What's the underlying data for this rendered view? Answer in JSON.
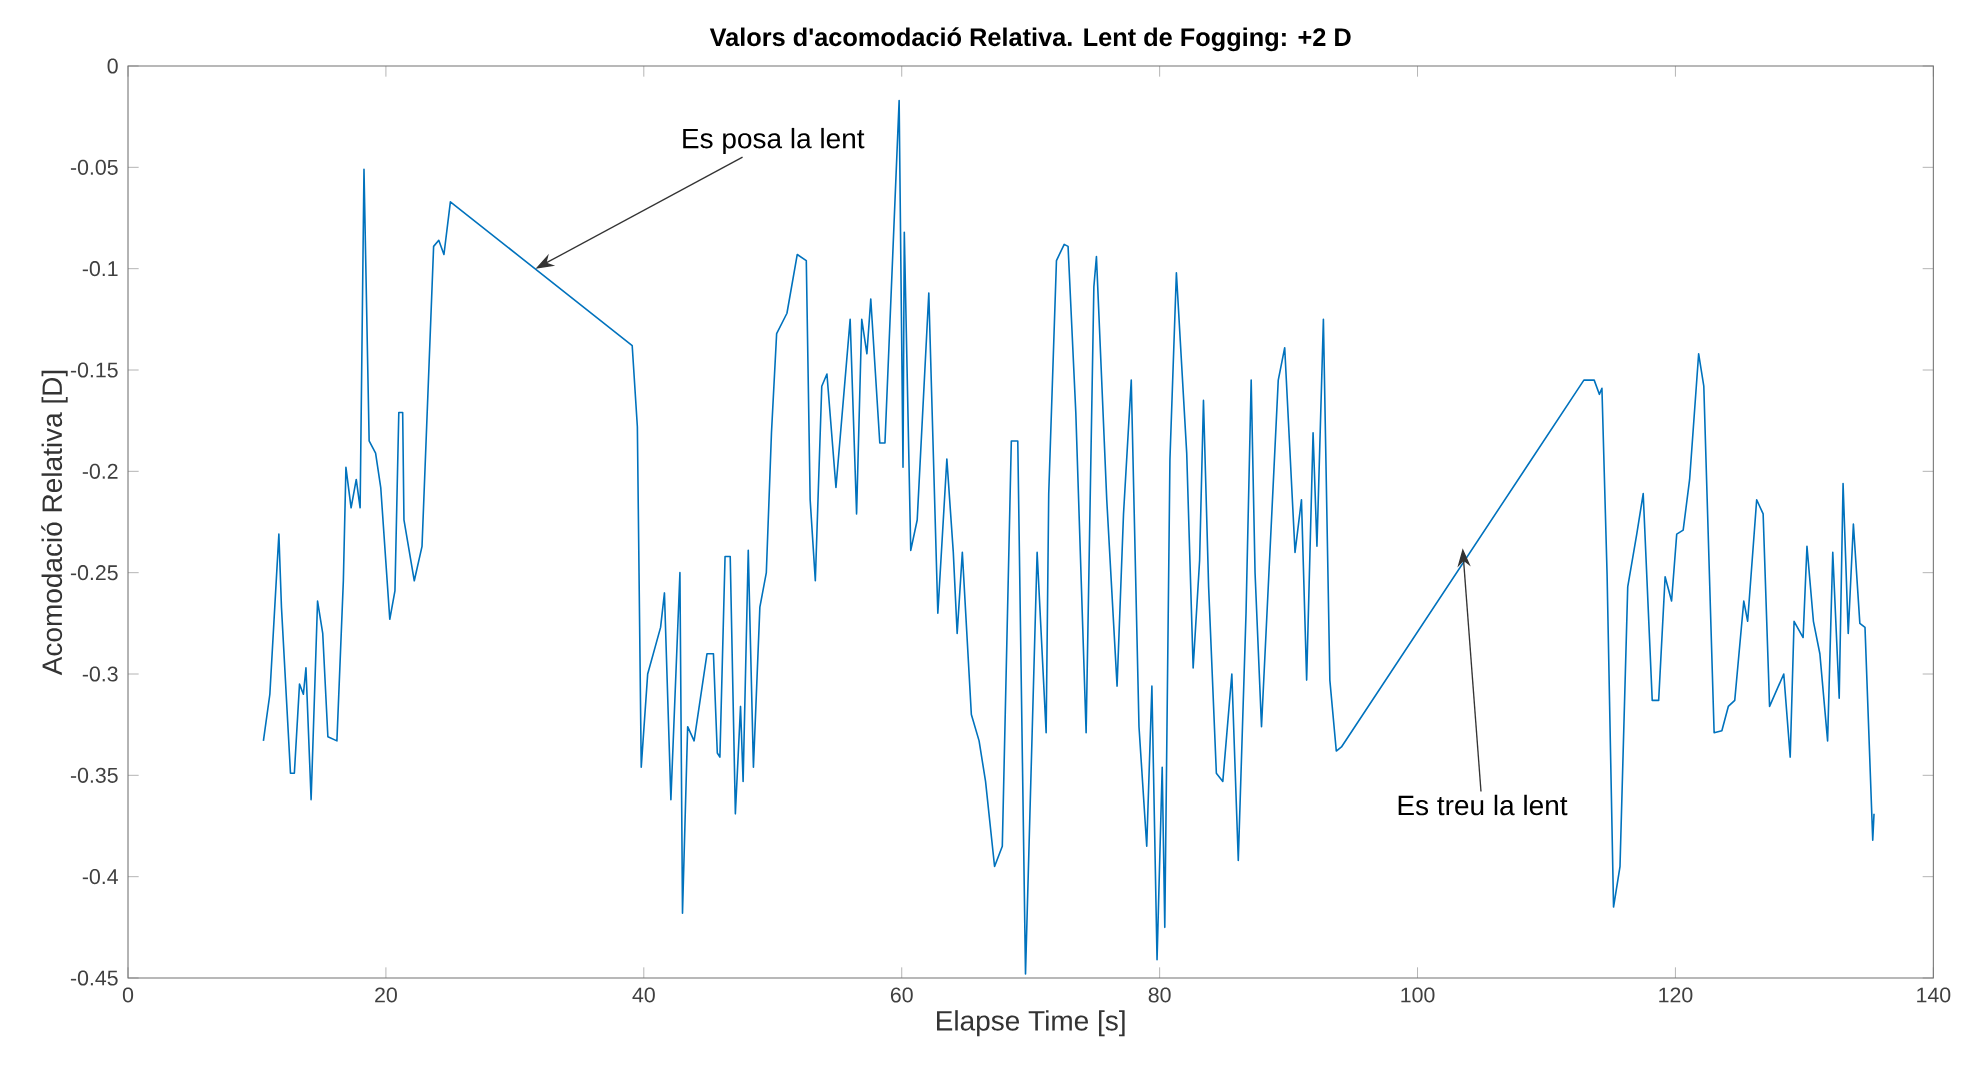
{
  "chart_data": {
    "type": "line",
    "title": "Valors d'acomodació Relativa. Lent de Fogging: +2 D",
    "xlabel": "Elapse Time [s]",
    "ylabel": "Acomodació Relativa [D]",
    "xlim": [
      0,
      140
    ],
    "ylim": [
      -0.45,
      0
    ],
    "xticks": [
      0,
      20,
      40,
      60,
      80,
      100,
      120,
      140
    ],
    "yticks": [
      -0.45,
      -0.4,
      -0.35,
      -0.3,
      -0.25,
      -0.2,
      -0.15,
      -0.1,
      -0.05,
      0
    ],
    "grid": false,
    "line_style": "solid",
    "marker": "none",
    "annotations": [
      {
        "text": "Es posa la lent",
        "x": 31.6,
        "y": -0.1
      },
      {
        "text": "Es treu la lent",
        "x": 103.5,
        "y": -0.238
      }
    ],
    "series": [
      {
        "color": "#0072bd",
        "x": [
          10.5,
          11.0,
          11.7,
          11.9,
          12.6,
          12.9,
          13.3,
          13.6,
          13.8,
          14.2,
          14.7,
          15.1,
          15.5,
          16.2,
          16.7,
          16.9,
          17.3,
          17.7,
          18.0,
          18.3,
          18.7,
          19.2,
          19.6,
          20.3,
          20.7,
          21.0,
          21.3,
          21.4,
          22.2,
          22.8,
          23.7,
          24.1,
          24.5,
          25.0,
          39.1,
          39.5,
          39.8,
          40.3,
          41.3,
          41.6,
          42.1,
          42.8,
          43.0,
          43.4,
          43.9,
          44.9,
          45.4,
          45.7,
          45.9,
          46.3,
          46.7,
          47.1,
          47.5,
          47.7,
          48.1,
          48.5,
          49.0,
          49.5,
          49.9,
          50.3,
          51.1,
          51.9,
          52.6,
          52.9,
          53.3,
          53.8,
          54.2,
          54.9,
          56.0,
          56.5,
          56.9,
          57.3,
          57.6,
          58.3,
          58.7,
          59.8,
          60.1,
          60.2,
          60.7,
          61.2,
          62.1,
          62.8,
          63.5,
          64.0,
          64.3,
          64.7,
          65.4,
          66.0,
          66.5,
          67.2,
          67.8,
          68.5,
          69.0,
          69.6,
          70.5,
          71.2,
          71.4,
          72.0,
          72.6,
          72.9,
          73.5,
          74.3,
          74.9,
          75.1,
          75.9,
          76.7,
          77.2,
          77.8,
          78.4,
          79.0,
          79.4,
          79.8,
          80.2,
          80.4,
          80.8,
          81.3,
          82.1,
          82.6,
          83.1,
          83.4,
          83.8,
          84.4,
          84.9,
          85.6,
          86.1,
          86.7,
          87.1,
          87.4,
          87.9,
          88.5,
          89.2,
          89.7,
          90.5,
          91.0,
          91.4,
          91.9,
          92.2,
          92.7,
          93.2,
          93.7,
          94.1,
          112.9,
          113.7,
          114.1,
          114.3,
          114.7,
          115.2,
          115.7,
          116.3,
          117.0,
          117.5,
          118.2,
          118.7,
          119.2,
          119.7,
          120.1,
          120.6,
          121.1,
          121.8,
          122.2,
          123.0,
          123.6,
          124.1,
          124.6,
          125.3,
          125.6,
          126.3,
          126.8,
          127.3,
          128.4,
          128.9,
          129.2,
          129.9,
          130.2,
          130.7,
          131.2,
          131.8,
          132.2,
          132.7,
          133.0,
          133.4,
          133.8,
          134.3,
          134.7,
          135.3,
          135.4
        ],
        "values": [
          -0.333,
          -0.31,
          -0.231,
          -0.267,
          -0.349,
          -0.349,
          -0.305,
          -0.31,
          -0.297,
          -0.362,
          -0.264,
          -0.28,
          -0.331,
          -0.333,
          -0.254,
          -0.198,
          -0.218,
          -0.204,
          -0.218,
          -0.051,
          -0.185,
          -0.191,
          -0.208,
          -0.273,
          -0.259,
          -0.171,
          -0.171,
          -0.224,
          -0.254,
          -0.237,
          -0.089,
          -0.086,
          -0.093,
          -0.067,
          -0.138,
          -0.178,
          -0.346,
          -0.3,
          -0.277,
          -0.26,
          -0.362,
          -0.25,
          -0.418,
          -0.326,
          -0.333,
          -0.29,
          -0.29,
          -0.339,
          -0.341,
          -0.242,
          -0.242,
          -0.369,
          -0.316,
          -0.353,
          -0.239,
          -0.346,
          -0.267,
          -0.25,
          -0.181,
          -0.132,
          -0.122,
          -0.093,
          -0.096,
          -0.214,
          -0.254,
          -0.158,
          -0.152,
          -0.208,
          -0.125,
          -0.221,
          -0.125,
          -0.142,
          -0.115,
          -0.186,
          -0.186,
          -0.017,
          -0.198,
          -0.082,
          -0.239,
          -0.224,
          -0.112,
          -0.27,
          -0.194,
          -0.24,
          -0.28,
          -0.24,
          -0.32,
          -0.333,
          -0.353,
          -0.395,
          -0.385,
          -0.185,
          -0.185,
          -0.448,
          -0.24,
          -0.329,
          -0.211,
          -0.096,
          -0.088,
          -0.089,
          -0.171,
          -0.329,
          -0.109,
          -0.094,
          -0.214,
          -0.306,
          -0.221,
          -0.155,
          -0.326,
          -0.385,
          -0.306,
          -0.441,
          -0.346,
          -0.425,
          -0.194,
          -0.102,
          -0.191,
          -0.297,
          -0.244,
          -0.165,
          -0.257,
          -0.349,
          -0.353,
          -0.3,
          -0.392,
          -0.27,
          -0.155,
          -0.25,
          -0.326,
          -0.247,
          -0.155,
          -0.139,
          -0.24,
          -0.214,
          -0.303,
          -0.181,
          -0.237,
          -0.125,
          -0.303,
          -0.338,
          -0.336,
          -0.155,
          -0.155,
          -0.162,
          -0.159,
          -0.251,
          -0.415,
          -0.395,
          -0.257,
          -0.231,
          -0.211,
          -0.313,
          -0.313,
          -0.252,
          -0.264,
          -0.231,
          -0.229,
          -0.204,
          -0.142,
          -0.158,
          -0.329,
          -0.328,
          -0.316,
          -0.313,
          -0.264,
          -0.274,
          -0.214,
          -0.221,
          -0.316,
          -0.3,
          -0.341,
          -0.274,
          -0.282,
          -0.237,
          -0.274,
          -0.29,
          -0.333,
          -0.24,
          -0.312,
          -0.206,
          -0.28,
          -0.226,
          -0.275,
          -0.277,
          -0.382,
          -0.369
        ]
      }
    ]
  }
}
